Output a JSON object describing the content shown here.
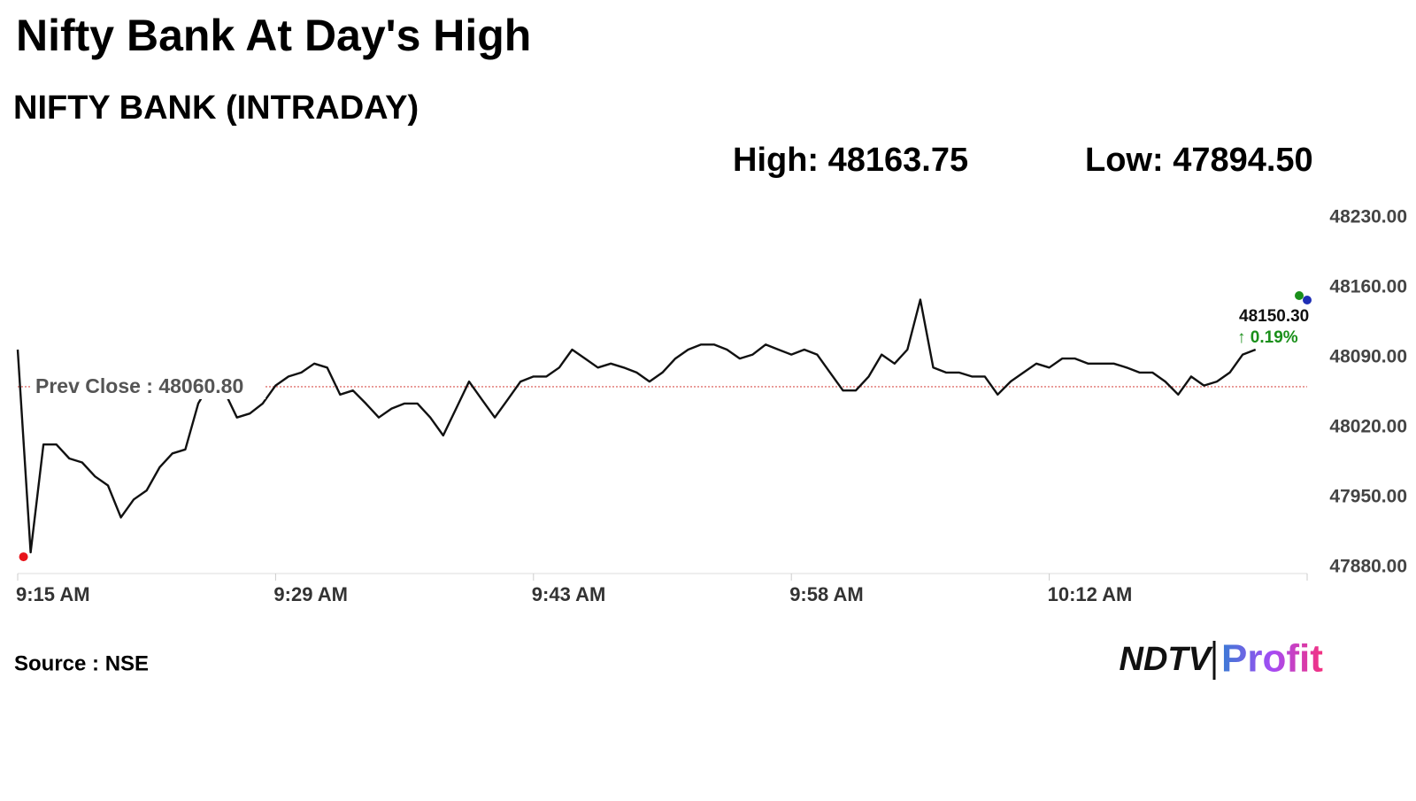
{
  "chart_data": {
    "type": "line",
    "title": "Nifty Bank At Day's High",
    "subtitle": "NIFTY BANK (INTRADAY)",
    "high_label": "High: 48163.75",
    "low_label": "Low: 47894.50",
    "categories": [
      "9:15 AM",
      null,
      null,
      null,
      null,
      null,
      null,
      null,
      null,
      null,
      null,
      null,
      null,
      null,
      null,
      null,
      null,
      null,
      null,
      null,
      "9:29 AM",
      null,
      null,
      null,
      null,
      null,
      null,
      null,
      null,
      null,
      null,
      null,
      null,
      null,
      null,
      null,
      null,
      null,
      null,
      null,
      "9:43 AM",
      null,
      null,
      null,
      null,
      null,
      null,
      null,
      null,
      null,
      null,
      null,
      null,
      null,
      null,
      null,
      null,
      null,
      null,
      null,
      "9:58 AM",
      null,
      null,
      null,
      null,
      null,
      null,
      null,
      null,
      null,
      null,
      null,
      null,
      null,
      null,
      null,
      null,
      null,
      null,
      null,
      "10:12 AM",
      null,
      null,
      null,
      null,
      null,
      null,
      null,
      null,
      null,
      null,
      null,
      null,
      null,
      null,
      null,
      null,
      null,
      null,
      null,
      null
    ],
    "values": [
      48098,
      47895,
      48003,
      48003,
      47989,
      47985,
      47971,
      47962,
      47930,
      47948,
      47957,
      47980,
      47994,
      47998,
      48044,
      48066,
      48057,
      48030,
      48034,
      48044,
      48062,
      48071,
      48075,
      48084,
      48080,
      48053,
      48057,
      48044,
      48030,
      48039,
      48044,
      48044,
      48030,
      48012,
      48039,
      48066,
      48048,
      48030,
      48048,
      48066,
      48071,
      48071,
      48080,
      48098,
      48089,
      48080,
      48084,
      48080,
      48075,
      48066,
      48075,
      48089,
      48098,
      48103,
      48103,
      48098,
      48089,
      48093,
      48103,
      48098,
      48093,
      48098,
      48093,
      48075,
      48057,
      48057,
      48071,
      48093,
      48084,
      48098,
      48148,
      48080,
      48075,
      48075,
      48071,
      48071,
      48053,
      48066,
      48075,
      48084,
      48080,
      48089,
      48089,
      48084,
      48084,
      48084,
      48080,
      48075,
      48075,
      48066,
      48053,
      48071,
      48062,
      48066,
      48075,
      48093,
      48098,
      null,
      null,
      null,
      null
    ],
    "color": "#111111",
    "ylim": [
      47880,
      48230
    ],
    "yticks": [
      {
        "value": 47880,
        "label": "47880.00"
      },
      {
        "value": 47950,
        "label": "47950.00"
      },
      {
        "value": 48020,
        "label": "48020.00"
      },
      {
        "value": 48090,
        "label": "48090.00"
      },
      {
        "value": 48160,
        "label": "48160.00"
      },
      {
        "value": 48230,
        "label": "48230.00"
      }
    ],
    "prev_close": 48060.8,
    "prev_close_label": "Prev Close : 48060.80",
    "prev_close_color": "#d9534f",
    "last_price": "48150.30",
    "change": "↑ 0.19%",
    "low_marker_color": "#e8141b",
    "source": "Source : NSE"
  },
  "brand": {
    "name": "NDTV",
    "product": "Profit"
  }
}
